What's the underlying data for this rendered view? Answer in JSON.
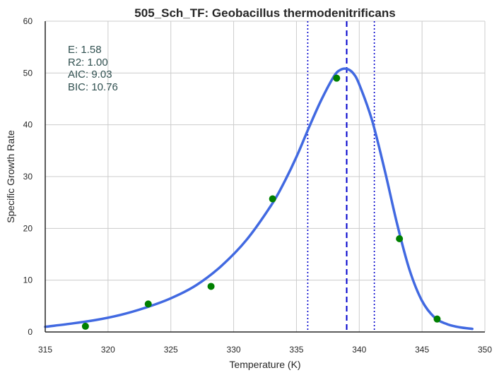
{
  "chart_data": {
    "type": "scatter",
    "title": "505_Sch_TF: Geobacillus thermodenitrificans",
    "xlabel": "Temperature (K)",
    "ylabel": "Specific Growth Rate",
    "xlim": [
      315,
      350
    ],
    "ylim": [
      0,
      60
    ],
    "xticks": [
      "315",
      "320",
      "325",
      "330",
      "335",
      "340",
      "345",
      "350"
    ],
    "yticks": [
      "0",
      "10",
      "20",
      "30",
      "40",
      "50",
      "60"
    ],
    "grid": true,
    "annotations": [
      "E:  1.58",
      "R2:  1.00",
      "AIC: 9.03",
      "BIC: 10.76"
    ],
    "points": {
      "color": "#008000",
      "x": [
        318.2,
        323.2,
        328.2,
        333.1,
        338.2,
        343.2,
        346.2
      ],
      "y": [
        1.1,
        5.4,
        8.8,
        25.7,
        49.0,
        18.0,
        2.5
      ]
    },
    "fit_curve": {
      "color": "#4169e1",
      "x": [
        315.0,
        317.0,
        319.0,
        321.0,
        323.0,
        325.0,
        327.0,
        329.0,
        331.0,
        333.0,
        334.0,
        335.0,
        336.0,
        337.0,
        338.0,
        338.5,
        339.0,
        339.5,
        340.0,
        341.0,
        342.0,
        343.0,
        344.0,
        345.0,
        346.0,
        347.0,
        348.0,
        349.0
      ],
      "y": [
        1.0,
        1.6,
        2.3,
        3.3,
        4.7,
        6.5,
        9.0,
        12.7,
        17.7,
        24.5,
        28.8,
        33.8,
        39.5,
        44.9,
        49.4,
        50.6,
        50.8,
        50.0,
        47.8,
        41.0,
        31.5,
        21.0,
        12.0,
        6.0,
        2.8,
        1.5,
        0.9,
        0.6
      ]
    },
    "vertical_lines": [
      {
        "x": 339.0,
        "style": "dashed",
        "color": "#0000cd"
      },
      {
        "x": 335.9,
        "style": "dotted",
        "color": "#0000cd"
      },
      {
        "x": 341.2,
        "style": "dotted",
        "color": "#0000cd"
      }
    ]
  }
}
